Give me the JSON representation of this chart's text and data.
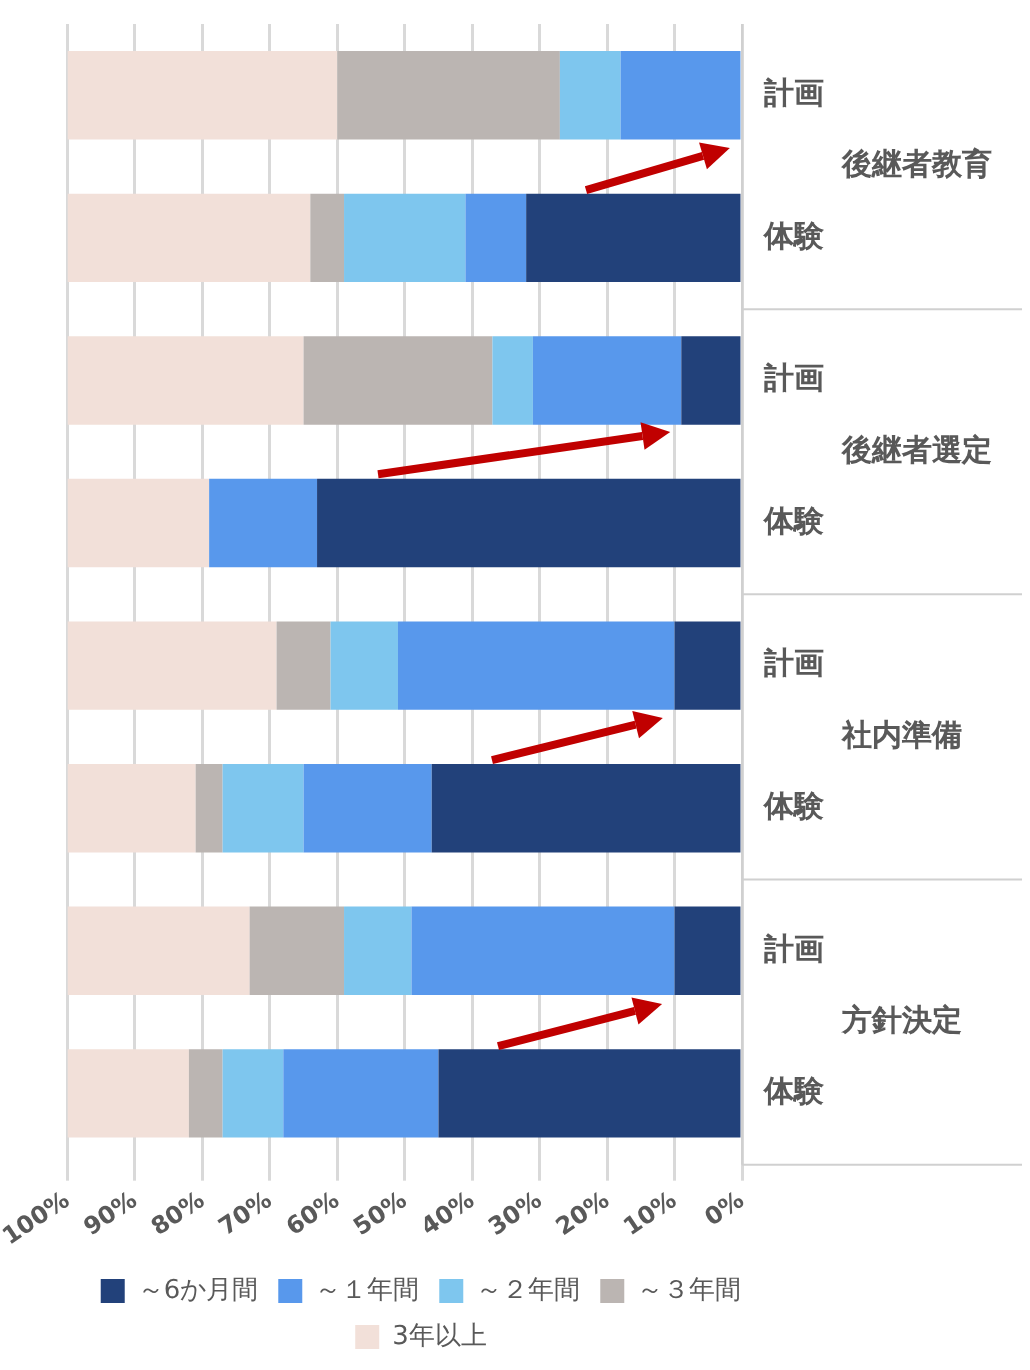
{
  "chart_data": {
    "type": "bar",
    "orientation": "horizontal",
    "stacked": true,
    "categories": [
      "計画",
      "体験",
      "計画",
      "体験",
      "計画",
      "体験",
      "計画",
      "体験"
    ],
    "series": [
      {
        "name": "～6か月間",
        "color": "#22417a",
        "values": [
          0,
          32,
          9,
          63,
          10,
          46,
          10,
          45
        ]
      },
      {
        "name": "～１年間",
        "color": "#5898ec",
        "values": [
          18,
          9,
          22,
          16,
          41,
          19,
          39,
          23
        ]
      },
      {
        "name": "～２年間",
        "color": "#7ec6ee",
        "values": [
          9,
          18,
          6,
          0,
          10,
          12,
          10,
          9
        ]
      },
      {
        "name": "～３年間",
        "color": "#bbb5b2",
        "values": [
          33,
          5,
          28,
          0,
          8,
          4,
          14,
          5
        ]
      },
      {
        "name": "3年以上",
        "color": "#f2e0d9",
        "values": [
          40,
          36,
          35,
          21,
          31,
          19,
          27,
          18
        ]
      }
    ],
    "annotations": [
      "後継者教育",
      "後継者選定",
      "社内準備",
      "方針決定"
    ],
    "xlim": [
      100,
      0
    ],
    "xticks": [
      {
        "value": 100,
        "label": "100%"
      },
      {
        "value": 90,
        "label": "90%"
      },
      {
        "value": 80,
        "label": "80%"
      },
      {
        "value": 70,
        "label": "70%"
      },
      {
        "value": 60,
        "label": "60%"
      },
      {
        "value": 50,
        "label": "50%"
      },
      {
        "value": 40,
        "label": "40%"
      },
      {
        "value": 30,
        "label": "30%"
      },
      {
        "value": 20,
        "label": "20%"
      },
      {
        "value": 10,
        "label": "10%"
      },
      {
        "value": 0,
        "label": "0%"
      }
    ],
    "grid": "x",
    "legend": "bottom"
  }
}
